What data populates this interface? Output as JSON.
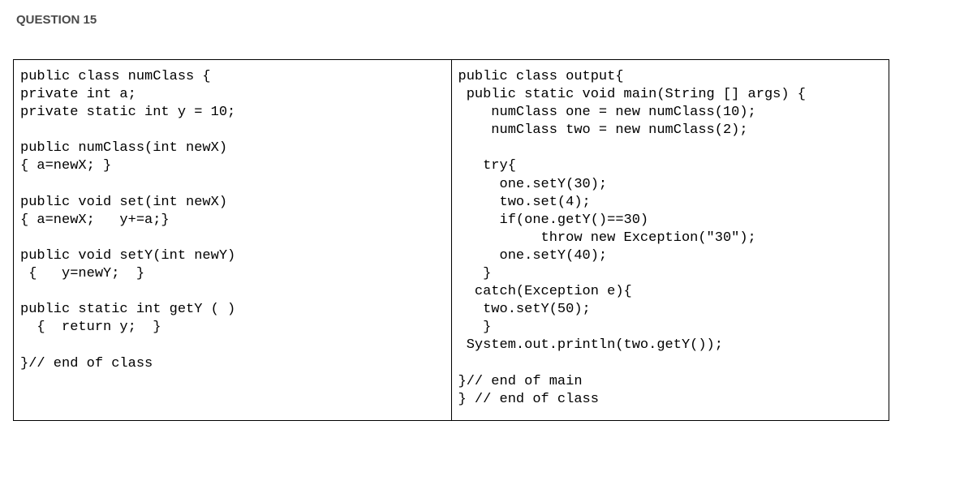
{
  "question": {
    "label": "QUESTION 15"
  },
  "code": {
    "left": "public class numClass {\nprivate int a;\nprivate static int y = 10;\n\npublic numClass(int newX)\n{ a=newX; }\n\npublic void set(int newX)\n{ a=newX;   y+=a;}\n\npublic void setY(int newY)\n {   y=newY;  }\n\npublic static int getY ( )\n  {  return y;  }\n\n}// end of class",
    "right": "public class output{\n public static void main(String [] args) {\n    numClass one = new numClass(10);\n    numClass two = new numClass(2);\n\n   try{\n     one.setY(30);\n     two.set(4);\n     if(one.getY()==30)\n          throw new Exception(\"30\");\n     one.setY(40);\n   }\n  catch(Exception e){\n   two.setY(50);\n   }\n System.out.println(two.getY());\n\n}// end of main\n} // end of class"
  }
}
